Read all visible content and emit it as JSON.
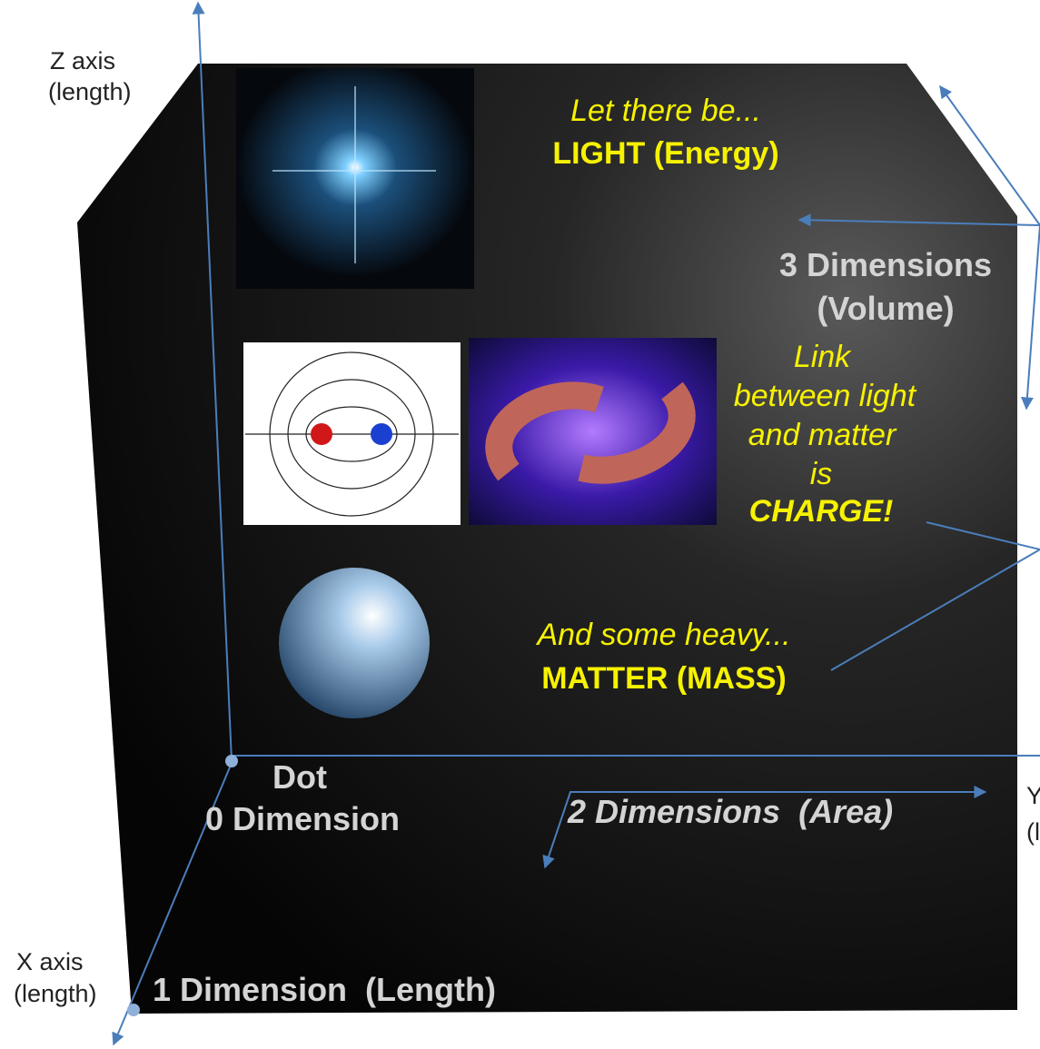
{
  "axes": {
    "z": {
      "name": "Z axis",
      "unit": "(length)"
    },
    "y": {
      "name": "Y axis",
      "unit": "(length)"
    },
    "x": {
      "name": "X axis",
      "unit": "(length)"
    }
  },
  "light": {
    "intro": "Let there be...",
    "label": "LIGHT (Energy)"
  },
  "volume": {
    "title": "3 Dimensions",
    "sub": "(Volume)"
  },
  "charge": {
    "lines": [
      "Link",
      "between light",
      "and matter",
      "is"
    ],
    "emphasis": "CHARGE!"
  },
  "matter": {
    "intro": "And some heavy...",
    "label": "MATTER (MASS)"
  },
  "dot": {
    "title": "Dot",
    "sub": "0 Dimension"
  },
  "area": "2 Dimensions  (Area)",
  "length": "1 Dimension  (Length)"
}
